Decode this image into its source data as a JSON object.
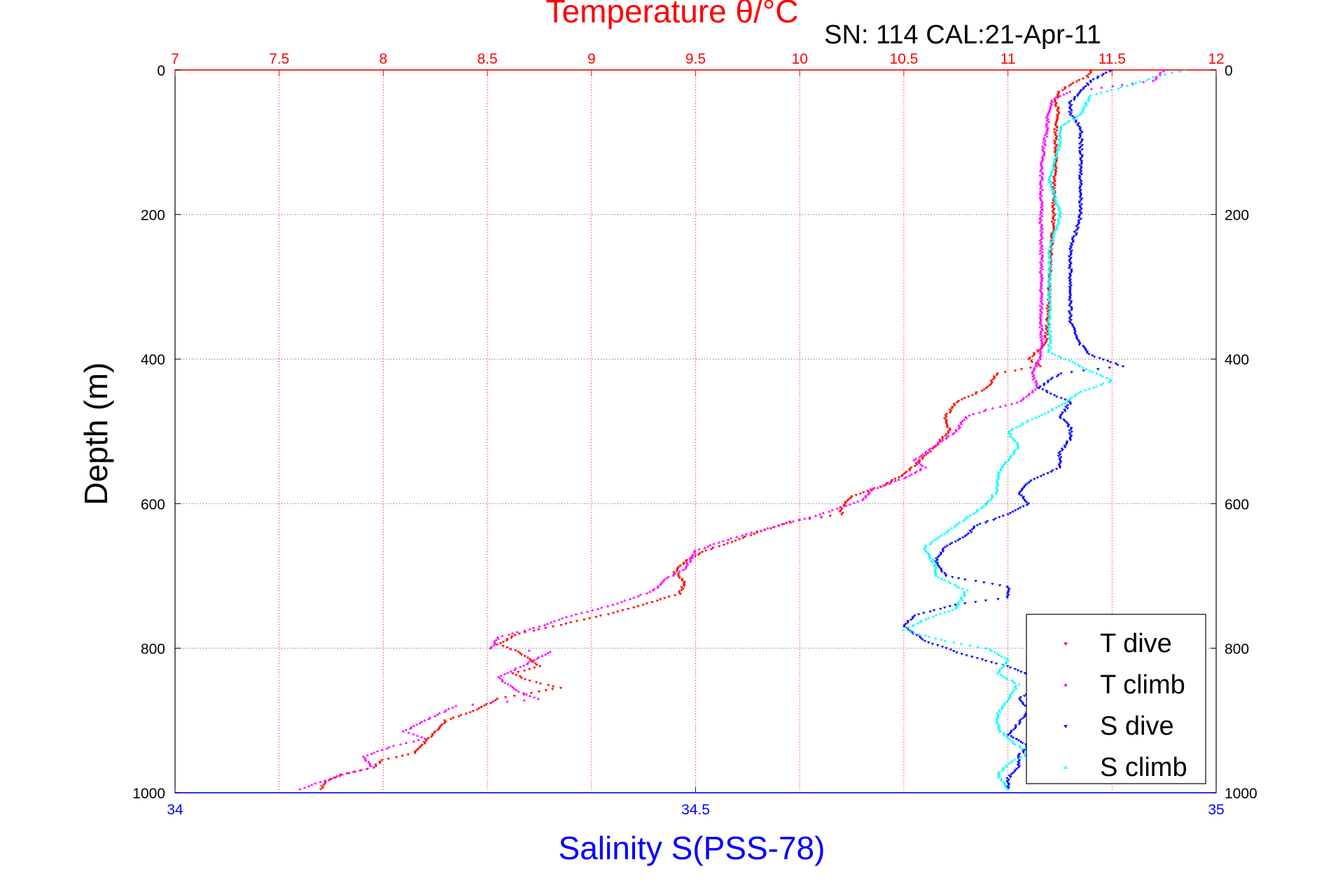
{
  "chart_data": {
    "type": "scatter",
    "title": "Temperature θ/°C",
    "subtitle": "SN: 114  CAL:21-Apr-11",
    "xlabel_top": "Temperature θ/°C",
    "xlabel_bottom": "Salinity S(PSS-78)",
    "ylabel": "Depth (m)",
    "temperature_axis": {
      "range": [
        7,
        12
      ],
      "ticks": [
        "7",
        "7.5",
        "8",
        "8.5",
        "9",
        "9.5",
        "10",
        "10.5",
        "11",
        "11.5",
        "12"
      ],
      "color": "#ff0000"
    },
    "salinity_axis": {
      "range": [
        34,
        35
      ],
      "ticks": [
        "34",
        "34.5",
        "35"
      ],
      "color": "#0000ff"
    },
    "depth_axis": {
      "range": [
        0,
        1000
      ],
      "reversed": true,
      "ticks": [
        "0",
        "200",
        "400",
        "600",
        "800",
        "1000"
      ]
    },
    "grid": true,
    "legend_position": "bottom-right",
    "series": [
      {
        "name": "T dive",
        "axis": "temperature",
        "color": "#ff0000",
        "marker": "triangle-down",
        "points": [
          [
            11.4,
            0
          ],
          [
            11.38,
            10
          ],
          [
            11.3,
            20
          ],
          [
            11.25,
            30
          ],
          [
            11.23,
            40
          ],
          [
            11.24,
            60
          ],
          [
            11.23,
            80
          ],
          [
            11.23,
            100
          ],
          [
            11.23,
            130
          ],
          [
            11.22,
            160
          ],
          [
            11.22,
            200
          ],
          [
            11.21,
            250
          ],
          [
            11.2,
            300
          ],
          [
            11.19,
            350
          ],
          [
            11.18,
            380
          ],
          [
            11.1,
            400
          ],
          [
            11.15,
            410
          ],
          [
            10.95,
            420
          ],
          [
            10.9,
            440
          ],
          [
            10.75,
            460
          ],
          [
            10.7,
            480
          ],
          [
            10.72,
            500
          ],
          [
            10.65,
            520
          ],
          [
            10.58,
            540
          ],
          [
            10.5,
            560
          ],
          [
            10.4,
            575
          ],
          [
            10.25,
            590
          ],
          [
            10.2,
            605
          ],
          [
            10.2,
            615
          ],
          [
            9.95,
            625
          ],
          [
            9.8,
            640
          ],
          [
            9.65,
            655
          ],
          [
            9.55,
            665
          ],
          [
            9.45,
            680
          ],
          [
            9.4,
            695
          ],
          [
            9.45,
            710
          ],
          [
            9.42,
            725
          ],
          [
            9.25,
            740
          ],
          [
            9.05,
            755
          ],
          [
            8.85,
            768
          ],
          [
            8.65,
            780
          ],
          [
            8.55,
            795
          ],
          [
            8.65,
            805
          ],
          [
            8.7,
            815
          ],
          [
            8.75,
            825
          ],
          [
            8.62,
            835
          ],
          [
            8.7,
            845
          ],
          [
            8.85,
            855
          ],
          [
            8.75,
            860
          ],
          [
            8.55,
            870
          ],
          [
            8.45,
            885
          ],
          [
            8.3,
            900
          ],
          [
            8.25,
            915
          ],
          [
            8.2,
            930
          ],
          [
            8.15,
            945
          ],
          [
            8.0,
            955
          ],
          [
            7.95,
            965
          ],
          [
            7.8,
            975
          ],
          [
            7.72,
            985
          ],
          [
            7.7,
            995
          ]
        ]
      },
      {
        "name": "T climb",
        "axis": "temperature",
        "color": "#ff00ff",
        "marker": "triangle-up",
        "points": [
          [
            11.75,
            0
          ],
          [
            11.7,
            15
          ],
          [
            11.3,
            30
          ],
          [
            11.22,
            40
          ],
          [
            11.19,
            60
          ],
          [
            11.19,
            80
          ],
          [
            11.17,
            110
          ],
          [
            11.16,
            150
          ],
          [
            11.16,
            200
          ],
          [
            11.16,
            250
          ],
          [
            11.16,
            300
          ],
          [
            11.16,
            350
          ],
          [
            11.16,
            380
          ],
          [
            11.15,
            400
          ],
          [
            11.12,
            420
          ],
          [
            11.14,
            440
          ],
          [
            11.05,
            460
          ],
          [
            10.9,
            470
          ],
          [
            10.8,
            480
          ],
          [
            10.75,
            500
          ],
          [
            10.65,
            520
          ],
          [
            10.55,
            540
          ],
          [
            10.6,
            550
          ],
          [
            10.5,
            565
          ],
          [
            10.35,
            580
          ],
          [
            10.3,
            595
          ],
          [
            10.1,
            615
          ],
          [
            9.9,
            630
          ],
          [
            9.65,
            650
          ],
          [
            9.5,
            665
          ],
          [
            9.45,
            690
          ],
          [
            9.35,
            705
          ],
          [
            9.3,
            720
          ],
          [
            9.1,
            740
          ],
          [
            8.9,
            755
          ],
          [
            8.75,
            770
          ],
          [
            8.55,
            785
          ],
          [
            8.52,
            800
          ],
          [
            8.8,
            805
          ],
          [
            8.7,
            820
          ],
          [
            8.55,
            840
          ],
          [
            8.6,
            850
          ],
          [
            8.65,
            860
          ],
          [
            8.75,
            870
          ],
          [
            8.35,
            880
          ],
          [
            8.2,
            900
          ],
          [
            8.1,
            915
          ],
          [
            8.2,
            925
          ],
          [
            8.05,
            935
          ],
          [
            7.9,
            950
          ],
          [
            7.95,
            965
          ],
          [
            7.8,
            975
          ],
          [
            7.7,
            985
          ],
          [
            7.6,
            995
          ]
        ]
      },
      {
        "name": "S dive",
        "axis": "salinity",
        "color": "#0000ff",
        "marker": "triangle-down",
        "points": [
          [
            34.9,
            0
          ],
          [
            34.88,
            15
          ],
          [
            34.87,
            30
          ],
          [
            34.86,
            45
          ],
          [
            34.86,
            60
          ],
          [
            34.87,
            80
          ],
          [
            34.87,
            100
          ],
          [
            34.87,
            150
          ],
          [
            34.87,
            200
          ],
          [
            34.86,
            250
          ],
          [
            34.86,
            300
          ],
          [
            34.86,
            350
          ],
          [
            34.87,
            380
          ],
          [
            34.88,
            395
          ],
          [
            34.91,
            410
          ],
          [
            34.85,
            420
          ],
          [
            34.83,
            440
          ],
          [
            34.86,
            460
          ],
          [
            34.85,
            480
          ],
          [
            34.86,
            495
          ],
          [
            34.86,
            510
          ],
          [
            34.85,
            530
          ],
          [
            34.85,
            550
          ],
          [
            34.82,
            570
          ],
          [
            34.81,
            585
          ],
          [
            34.82,
            600
          ],
          [
            34.8,
            615
          ],
          [
            34.77,
            630
          ],
          [
            34.76,
            645
          ],
          [
            34.74,
            660
          ],
          [
            34.73,
            680
          ],
          [
            34.74,
            700
          ],
          [
            34.76,
            705
          ],
          [
            34.8,
            715
          ],
          [
            34.8,
            730
          ],
          [
            34.75,
            740
          ],
          [
            34.71,
            755
          ],
          [
            34.7,
            770
          ],
          [
            34.72,
            790
          ],
          [
            34.76,
            810
          ],
          [
            34.8,
            825
          ],
          [
            34.84,
            850
          ],
          [
            34.81,
            870
          ],
          [
            34.82,
            885
          ],
          [
            34.81,
            905
          ],
          [
            34.8,
            920
          ],
          [
            34.82,
            935
          ],
          [
            34.81,
            950
          ],
          [
            34.81,
            965
          ],
          [
            34.8,
            980
          ],
          [
            34.8,
            995
          ]
        ]
      },
      {
        "name": "S climb",
        "axis": "salinity",
        "color": "#00ffff",
        "marker": "triangle-up",
        "points": [
          [
            34.97,
            0
          ],
          [
            34.94,
            10
          ],
          [
            34.92,
            20
          ],
          [
            34.88,
            35
          ],
          [
            34.87,
            60
          ],
          [
            34.85,
            80
          ],
          [
            34.85,
            100
          ],
          [
            34.84,
            150
          ],
          [
            34.85,
            200
          ],
          [
            34.84,
            250
          ],
          [
            34.84,
            300
          ],
          [
            34.84,
            350
          ],
          [
            34.84,
            390
          ],
          [
            34.87,
            410
          ],
          [
            34.9,
            430
          ],
          [
            34.87,
            445
          ],
          [
            34.85,
            465
          ],
          [
            34.82,
            485
          ],
          [
            34.8,
            500
          ],
          [
            34.81,
            520
          ],
          [
            34.8,
            540
          ],
          [
            34.79,
            560
          ],
          [
            34.79,
            580
          ],
          [
            34.78,
            600
          ],
          [
            34.76,
            620
          ],
          [
            34.74,
            640
          ],
          [
            34.72,
            660
          ],
          [
            34.73,
            685
          ],
          [
            34.73,
            700
          ],
          [
            34.76,
            720
          ],
          [
            34.75,
            745
          ],
          [
            34.72,
            760
          ],
          [
            34.7,
            775
          ],
          [
            34.74,
            790
          ],
          [
            34.78,
            800
          ],
          [
            34.8,
            815
          ],
          [
            34.79,
            835
          ],
          [
            34.81,
            850
          ],
          [
            34.8,
            870
          ],
          [
            34.79,
            890
          ],
          [
            34.79,
            910
          ],
          [
            34.8,
            925
          ],
          [
            34.82,
            945
          ],
          [
            34.8,
            960
          ],
          [
            34.79,
            975
          ],
          [
            34.8,
            995
          ]
        ]
      }
    ]
  }
}
